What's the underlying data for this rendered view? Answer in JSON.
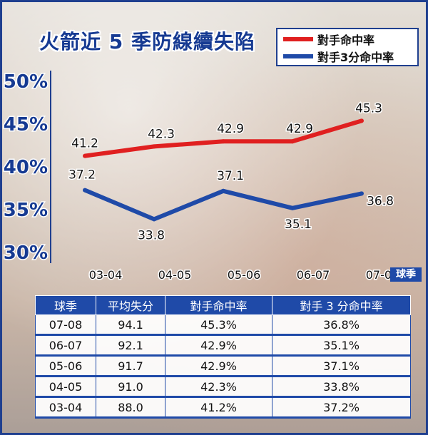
{
  "title": "火箭近 5 季防線續失陷",
  "chart_data": {
    "type": "line",
    "categories": [
      "03-04",
      "04-05",
      "05-06",
      "06-07",
      "07-08"
    ],
    "xlabel": "球季",
    "ylim": [
      30,
      50
    ],
    "yticks": [
      "30%",
      "35%",
      "40%",
      "45%",
      "50%"
    ],
    "legend_position": "top-right",
    "series": [
      {
        "name": "對手命中率",
        "color": "#e02020",
        "values": [
          41.2,
          42.3,
          42.9,
          42.9,
          45.3
        ],
        "labels": [
          "41.2",
          "42.3",
          "42.9",
          "42.9",
          "45.3"
        ]
      },
      {
        "name": "對手3分命中率",
        "color": "#1f4aa8",
        "values": [
          37.2,
          33.8,
          37.1,
          35.1,
          36.8
        ],
        "labels": [
          "37.2",
          "33.8",
          "37.1",
          "35.1",
          "36.8"
        ]
      }
    ]
  },
  "table": {
    "headers": [
      "球季",
      "平均失分",
      "對手命中率",
      "對手 3 分命中率"
    ],
    "rows": [
      [
        "07-08",
        "94.1",
        "45.3%",
        "36.8%"
      ],
      [
        "06-07",
        "92.1",
        "42.9%",
        "35.1%"
      ],
      [
        "05-06",
        "91.7",
        "42.9%",
        "37.1%"
      ],
      [
        "04-05",
        "91.0",
        "42.3%",
        "33.8%"
      ],
      [
        "03-04",
        "88.0",
        "41.2%",
        "37.2%"
      ]
    ]
  }
}
